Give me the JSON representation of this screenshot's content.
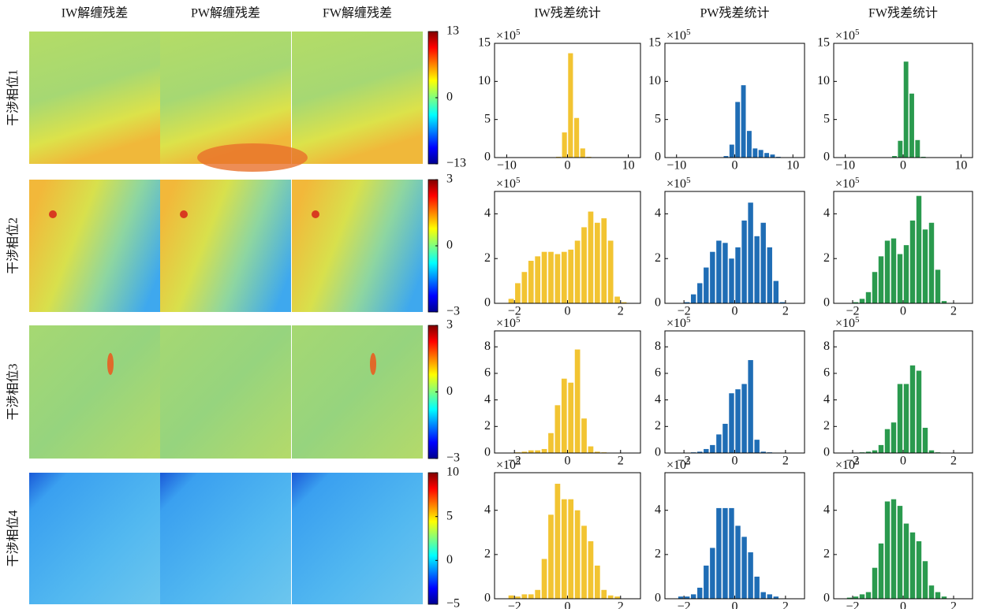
{
  "maps": {
    "column_titles": [
      "IW解缠残差",
      "PW解缠残差",
      "FW解缠残差"
    ],
    "row_labels": [
      "干涉相位1",
      "干涉相位2",
      "干涉相位3",
      "干涉相位4"
    ],
    "colorbars": [
      {
        "lim": [
          -13,
          13
        ],
        "ticks": [
          {
            "value": -13,
            "label": "−13"
          },
          0,
          13
        ]
      },
      {
        "lim": [
          -3,
          3
        ],
        "ticks": [
          {
            "value": -3,
            "label": "−3"
          },
          0,
          3
        ]
      },
      {
        "lim": [
          -3,
          3
        ],
        "ticks": [
          {
            "value": -3,
            "label": "−3"
          },
          0,
          3
        ]
      },
      {
        "lim": [
          -5,
          10
        ],
        "ticks": [
          {
            "value": -5,
            "label": "−5"
          },
          0,
          5,
          10
        ]
      }
    ]
  },
  "chart_data": [
    {
      "type": "histogram",
      "title": "IW残差统计",
      "y_scale_label": "×10",
      "y_scale_exponent": 5,
      "color": "#f2c432",
      "bins": [
        -3,
        -2,
        -1,
        0,
        1,
        2,
        3,
        4,
        5,
        6,
        7,
        8
      ],
      "values": [
        0.05,
        0.1,
        3.3,
        13.7,
        5.2,
        1.2,
        0.1,
        0,
        0,
        0,
        0
      ],
      "xlim": [
        -12,
        12
      ],
      "xticks": [
        {
          "value": -10,
          "label": "−10"
        },
        0,
        10
      ],
      "ylim": [
        0,
        15
      ],
      "yticks": [
        0,
        5,
        10,
        15
      ]
    },
    {
      "type": "histogram",
      "title": "PW残差统计",
      "y_scale_label": "×10",
      "y_scale_exponent": 5,
      "color": "#1f6db5",
      "bins": [
        -3,
        -2,
        -1,
        0,
        1,
        2,
        3,
        4,
        5,
        6,
        7,
        8
      ],
      "values": [
        0,
        0.2,
        1.7,
        7.3,
        9.5,
        3.5,
        1.2,
        1.0,
        0.6,
        0.4,
        0.1
      ],
      "xlim": [
        -12,
        12
      ],
      "xticks": [
        {
          "value": -10,
          "label": "−10"
        },
        0,
        10
      ],
      "ylim": [
        0,
        15
      ],
      "yticks": [
        0,
        5,
        10,
        15
      ]
    },
    {
      "type": "histogram",
      "title": "FW残差统计",
      "y_scale_label": "×10",
      "y_scale_exponent": 5,
      "color": "#2a9a4e",
      "bins": [
        -3,
        -2,
        -1,
        0,
        1,
        2,
        3,
        4,
        5,
        6,
        7,
        8
      ],
      "values": [
        0.05,
        0.2,
        2.2,
        12.6,
        8.4,
        2.3,
        0.1,
        0,
        0,
        0,
        0
      ],
      "xlim": [
        -12,
        12
      ],
      "xticks": [
        {
          "value": -10,
          "label": "−10"
        },
        0,
        10
      ],
      "ylim": [
        0,
        15
      ],
      "yticks": [
        0,
        5,
        10,
        15
      ]
    },
    {
      "type": "histogram",
      "y_scale_label": "×10",
      "y_scale_exponent": 5,
      "color": "#f2c432",
      "bins": [
        -2.25,
        -2,
        -1.75,
        -1.5,
        -1.25,
        -1,
        -0.75,
        -0.5,
        -0.25,
        0,
        0.25,
        0.5,
        0.75,
        1,
        1.25,
        1.5,
        1.75,
        2,
        2.25,
        2.5
      ],
      "values": [
        0.2,
        0.9,
        1.4,
        1.9,
        2.1,
        2.3,
        2.3,
        2.2,
        2.3,
        2.4,
        2.8,
        3.4,
        4.1,
        3.6,
        3.8,
        2.8,
        0.3,
        0.05,
        0
      ],
      "xlim": [
        -2.75,
        2.75
      ],
      "xticks": [
        {
          "value": -2,
          "label": "−2"
        },
        0,
        2
      ],
      "ylim": [
        0,
        5
      ],
      "yticks": [
        0,
        2,
        4
      ]
    },
    {
      "type": "histogram",
      "y_scale_label": "×10",
      "y_scale_exponent": 5,
      "color": "#1f6db5",
      "bins": [
        -2.25,
        -2,
        -1.75,
        -1.5,
        -1.25,
        -1,
        -0.75,
        -0.5,
        -0.25,
        0,
        0.25,
        0.5,
        0.75,
        1,
        1.25,
        1.5,
        1.75,
        2,
        2.25,
        2.5
      ],
      "values": [
        0,
        0.05,
        0.4,
        0.9,
        1.6,
        2.3,
        2.8,
        2.7,
        2.0,
        2.5,
        3.7,
        4.5,
        3.0,
        3.6,
        2.5,
        1.0,
        0.05,
        0,
        0
      ],
      "xlim": [
        -2.75,
        2.75
      ],
      "xticks": [
        {
          "value": -2,
          "label": "−2"
        },
        0,
        2
      ],
      "ylim": [
        0,
        5
      ],
      "yticks": [
        0,
        2,
        4
      ]
    },
    {
      "type": "histogram",
      "y_scale_label": "×10",
      "y_scale_exponent": 5,
      "color": "#2a9a4e",
      "bins": [
        -2.25,
        -2,
        -1.75,
        -1.5,
        -1.25,
        -1,
        -0.75,
        -0.5,
        -0.25,
        0,
        0.25,
        0.5,
        0.75,
        1,
        1.25,
        1.5,
        1.75,
        2,
        2.25,
        2.5
      ],
      "values": [
        0,
        0.05,
        0.2,
        0.5,
        1.4,
        2.1,
        2.8,
        2.9,
        2.2,
        2.6,
        3.7,
        4.8,
        3.3,
        3.6,
        1.5,
        0.1,
        0.02,
        0,
        0
      ],
      "xlim": [
        -2.75,
        2.75
      ],
      "xticks": [
        {
          "value": -2,
          "label": "−2"
        },
        0,
        2
      ],
      "ylim": [
        0,
        5
      ],
      "yticks": [
        0,
        2,
        4
      ]
    },
    {
      "type": "histogram",
      "y_scale_label": "×10",
      "y_scale_exponent": 5,
      "color": "#f2c432",
      "bins": [
        -2.25,
        -2,
        -1.75,
        -1.5,
        -1.25,
        -1,
        -0.75,
        -0.5,
        -0.25,
        0,
        0.25,
        0.5,
        0.75,
        1,
        1.25,
        1.5,
        1.75,
        2,
        2.25,
        2.5
      ],
      "values": [
        0,
        0.05,
        0.1,
        0.2,
        0.2,
        0.3,
        1.5,
        3.6,
        5.6,
        5.3,
        7.8,
        2.6,
        0.5,
        0.1,
        0.05,
        0,
        0,
        0,
        0
      ],
      "xlim": [
        -2.75,
        2.75
      ],
      "xticks": [
        {
          "value": -2,
          "label": "−2"
        },
        0,
        2
      ],
      "ylim": [
        0,
        9.2
      ],
      "yticks": [
        0,
        2,
        4,
        6,
        8
      ]
    },
    {
      "type": "histogram",
      "y_scale_label": "×10",
      "y_scale_exponent": 5,
      "color": "#1f6db5",
      "bins": [
        -2.25,
        -2,
        -1.75,
        -1.5,
        -1.25,
        -1,
        -0.75,
        -0.5,
        -0.25,
        0,
        0.25,
        0.5,
        0.75,
        1,
        1.25,
        1.5,
        1.75,
        2,
        2.25,
        2.5
      ],
      "values": [
        0,
        0,
        0.05,
        0.1,
        0.3,
        0.6,
        1.4,
        2.2,
        4.5,
        4.8,
        5.2,
        7.0,
        1.0,
        0.1,
        0.05,
        0,
        0,
        0,
        0
      ],
      "xlim": [
        -2.75,
        2.75
      ],
      "xticks": [
        {
          "value": -2,
          "label": "−2"
        },
        0,
        2
      ],
      "ylim": [
        0,
        9.2
      ],
      "yticks": [
        0,
        2,
        4,
        6,
        8
      ]
    },
    {
      "type": "histogram",
      "y_scale_label": "×10",
      "y_scale_exponent": 5,
      "color": "#2a9a4e",
      "bins": [
        -2.25,
        -2,
        -1.75,
        -1.5,
        -1.25,
        -1,
        -0.75,
        -0.5,
        -0.25,
        0,
        0.25,
        0.5,
        0.75,
        1,
        1.25,
        1.5,
        1.75,
        2,
        2.25,
        2.5
      ],
      "values": [
        0,
        0,
        0.05,
        0.1,
        0.2,
        0.6,
        1.8,
        2.3,
        5.2,
        5.2,
        6.6,
        6.2,
        1.9,
        0.2,
        0.05,
        0,
        0,
        0,
        0
      ],
      "xlim": [
        -2.75,
        2.75
      ],
      "xticks": [
        {
          "value": -2,
          "label": "−2"
        },
        0,
        2
      ],
      "ylim": [
        0,
        9.2
      ],
      "yticks": [
        0,
        2,
        4,
        6,
        8
      ]
    },
    {
      "type": "histogram",
      "y_scale_label": "×10",
      "y_scale_exponent": 5,
      "color": "#f2c432",
      "bins": [
        -2.25,
        -2,
        -1.75,
        -1.5,
        -1.25,
        -1,
        -0.75,
        -0.5,
        -0.25,
        0,
        0.25,
        0.5,
        0.75,
        1,
        1.25,
        1.5,
        1.75,
        2,
        2.25,
        2.5
      ],
      "values": [
        0.15,
        0.1,
        0.2,
        0.2,
        0.4,
        1.8,
        3.8,
        5.2,
        4.5,
        4.5,
        4.0,
        3.3,
        2.6,
        1.5,
        0.4,
        0.15,
        0.1,
        0,
        0
      ],
      "xlim": [
        -2.75,
        2.75
      ],
      "xticks": [
        {
          "value": -2,
          "label": "−2"
        },
        0,
        2
      ],
      "ylim": [
        0,
        5.7
      ],
      "yticks": [
        0,
        2,
        4
      ]
    },
    {
      "type": "histogram",
      "y_scale_label": "×10",
      "y_scale_exponent": 5,
      "color": "#1f6db5",
      "bins": [
        -2.25,
        -2,
        -1.75,
        -1.5,
        -1.25,
        -1,
        -0.75,
        -0.5,
        -0.25,
        0,
        0.25,
        0.5,
        0.75,
        1,
        1.25,
        1.5,
        1.75,
        2,
        2.25,
        2.5
      ],
      "values": [
        0.1,
        0.1,
        0.2,
        0.5,
        1.5,
        2.3,
        4.1,
        4.1,
        4.1,
        3.3,
        2.8,
        2.1,
        1.0,
        0.3,
        0.2,
        0.1,
        0,
        0,
        0
      ],
      "xlim": [
        -2.75,
        2.75
      ],
      "xticks": [
        {
          "value": -2,
          "label": "−2"
        },
        0,
        2
      ],
      "ylim": [
        0,
        5.7
      ],
      "yticks": [
        0,
        2,
        4
      ]
    },
    {
      "type": "histogram",
      "y_scale_label": "×10",
      "y_scale_exponent": 5,
      "color": "#2a9a4e",
      "bins": [
        -2.25,
        -2,
        -1.75,
        -1.5,
        -1.25,
        -1,
        -0.75,
        -0.5,
        -0.25,
        0,
        0.25,
        0.5,
        0.75,
        1,
        1.25,
        1.5,
        1.75,
        2,
        2.25,
        2.5
      ],
      "values": [
        0.05,
        0.1,
        0.2,
        0.3,
        1.4,
        2.5,
        4.4,
        4.5,
        4.2,
        3.4,
        3.0,
        2.6,
        1.7,
        0.6,
        0.3,
        0.1,
        0,
        0,
        0
      ],
      "xlim": [
        -2.75,
        2.75
      ],
      "xticks": [
        {
          "value": -2,
          "label": "−2"
        },
        0,
        2
      ],
      "ylim": [
        0,
        5.7
      ],
      "yticks": [
        0,
        2,
        4
      ]
    }
  ]
}
